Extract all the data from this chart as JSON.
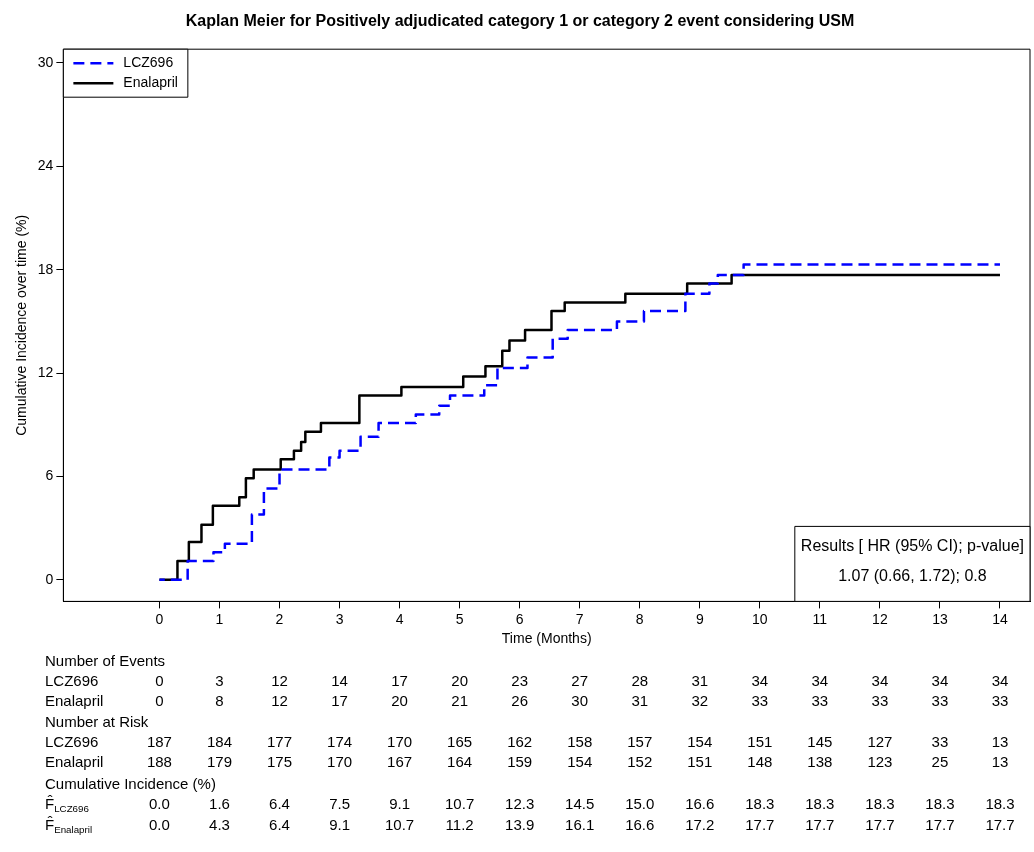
{
  "chart_data": {
    "type": "step",
    "title": "Kaplan Meier for Positively adjudicated category 1 or category 2 event considering USM",
    "xlabel": "Time (Months)",
    "ylabel": "Cumulative Incidence over time (%)",
    "xlim": [
      -1.6,
      14.5
    ],
    "xticks": [
      0,
      1,
      2,
      3,
      4,
      5,
      6,
      7,
      8,
      9,
      10,
      11,
      12,
      13,
      14
    ],
    "ylim": [
      -1.25,
      30.8
    ],
    "yticks": [
      0,
      6,
      12,
      18,
      24,
      30
    ],
    "legend": "top left",
    "series": [
      {
        "name": "LCZ696",
        "color": "#0000ff",
        "line_style": "dashed",
        "x": [
          0,
          0.47,
          0.9,
          1.09,
          1.54,
          1.74,
          2.0,
          2.83,
          3.0,
          3.35,
          3.65,
          4.27,
          4.66,
          4.84,
          5.41,
          5.63,
          6.13,
          6.55,
          6.8,
          7.62,
          8.07,
          8.76,
          9.16,
          9.3,
          9.73,
          14
        ],
        "values": [
          0,
          1.1,
          1.6,
          2.1,
          3.8,
          5.3,
          6.4,
          7.1,
          7.5,
          8.3,
          9.1,
          9.6,
          10.1,
          10.7,
          11.3,
          12.3,
          12.9,
          14.0,
          14.5,
          15.0,
          15.6,
          16.6,
          17.2,
          17.7,
          18.3,
          18.3
        ]
      },
      {
        "name": "Enalapril",
        "color": "#000000",
        "line_style": "solid",
        "x": [
          0,
          0.3,
          0.49,
          0.7,
          0.89,
          1.33,
          1.44,
          1.57,
          2.02,
          2.24,
          2.36,
          2.43,
          2.69,
          3.33,
          4.03,
          5.06,
          5.43,
          5.71,
          5.83,
          6.09,
          6.53,
          6.75,
          7.76,
          8.79,
          9.53,
          14
        ],
        "values": [
          0,
          1.1,
          2.2,
          3.2,
          4.3,
          4.8,
          5.9,
          6.4,
          7.0,
          7.5,
          8.0,
          8.6,
          9.1,
          10.7,
          11.2,
          11.8,
          12.4,
          13.3,
          13.9,
          14.5,
          15.6,
          16.1,
          16.6,
          17.2,
          17.7,
          17.7
        ]
      }
    ],
    "annotations": [
      "Results [ HR (95% CI); p-value]",
      "1.07 (0.66, 1.72); 0.8",
      "Number of Events",
      "LCZ696 0 3 12 14 17 20 23 27 28 31 34 34 34 34 34",
      "Enalapril 0 8 12 17 20 21 26 30 31 32 33 33 33 33 33",
      "Number at Risk",
      "LCZ696 187 184 177 174 170 165 162 158 157 154 151 145 127 33 13",
      "Enalapril 188 179 175 170 167 164 159 154 152 151 148 138 123 25 13",
      "Cumulative Incidence (%)",
      "F̂$_{LCZ696}$ 0.0 1.6 6.4 7.5 9.1 10.7 12.3 14.5 15.0 16.6 18.3 18.3 18.3 18.3 18.3",
      "F̂$_{Enalapril}$ 0.0 4.3 6.4 9.1 10.7 11.2 13.9 16.1 16.6 17.2 17.7 17.7 17.7 17.7 17.7"
    ]
  }
}
